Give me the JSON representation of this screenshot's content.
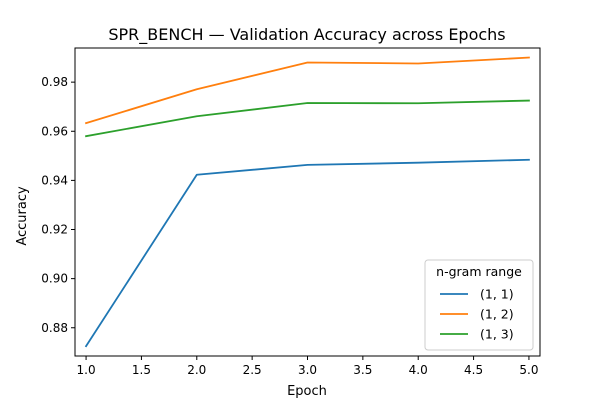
{
  "chart_data": {
    "type": "line",
    "title": "SPR_BENCH — Validation Accuracy across Epochs",
    "xlabel": "Epoch",
    "ylabel": "Accuracy",
    "xlim": [
      0.9,
      5.1
    ],
    "ylim": [
      0.8685,
      0.9939
    ],
    "xticks": [
      1.0,
      1.5,
      2.0,
      2.5,
      3.0,
      3.5,
      4.0,
      4.5,
      5.0
    ],
    "xtick_labels": [
      "1.0",
      "1.5",
      "2.0",
      "2.5",
      "3.0",
      "3.5",
      "4.0",
      "4.5",
      "5.0"
    ],
    "yticks": [
      0.88,
      0.9,
      0.92,
      0.94,
      0.96,
      0.98
    ],
    "ytick_labels": [
      "0.88",
      "0.90",
      "0.92",
      "0.94",
      "0.96",
      "0.98"
    ],
    "grid": false,
    "legend": {
      "title": "n-gram range",
      "placement": "lower-right"
    },
    "x": [
      1,
      2,
      3,
      4,
      5
    ],
    "series": [
      {
        "name": "(1, 1)",
        "color": "#1f77b4",
        "values": [
          0.8725,
          0.9423,
          0.9463,
          0.9472,
          0.9484
        ]
      },
      {
        "name": "(1, 2)",
        "color": "#ff7f0e",
        "values": [
          0.9633,
          0.9771,
          0.988,
          0.9876,
          0.99
        ]
      },
      {
        "name": "(1, 3)",
        "color": "#2ca02c",
        "values": [
          0.958,
          0.9661,
          0.9715,
          0.9714,
          0.9725
        ]
      }
    ]
  }
}
